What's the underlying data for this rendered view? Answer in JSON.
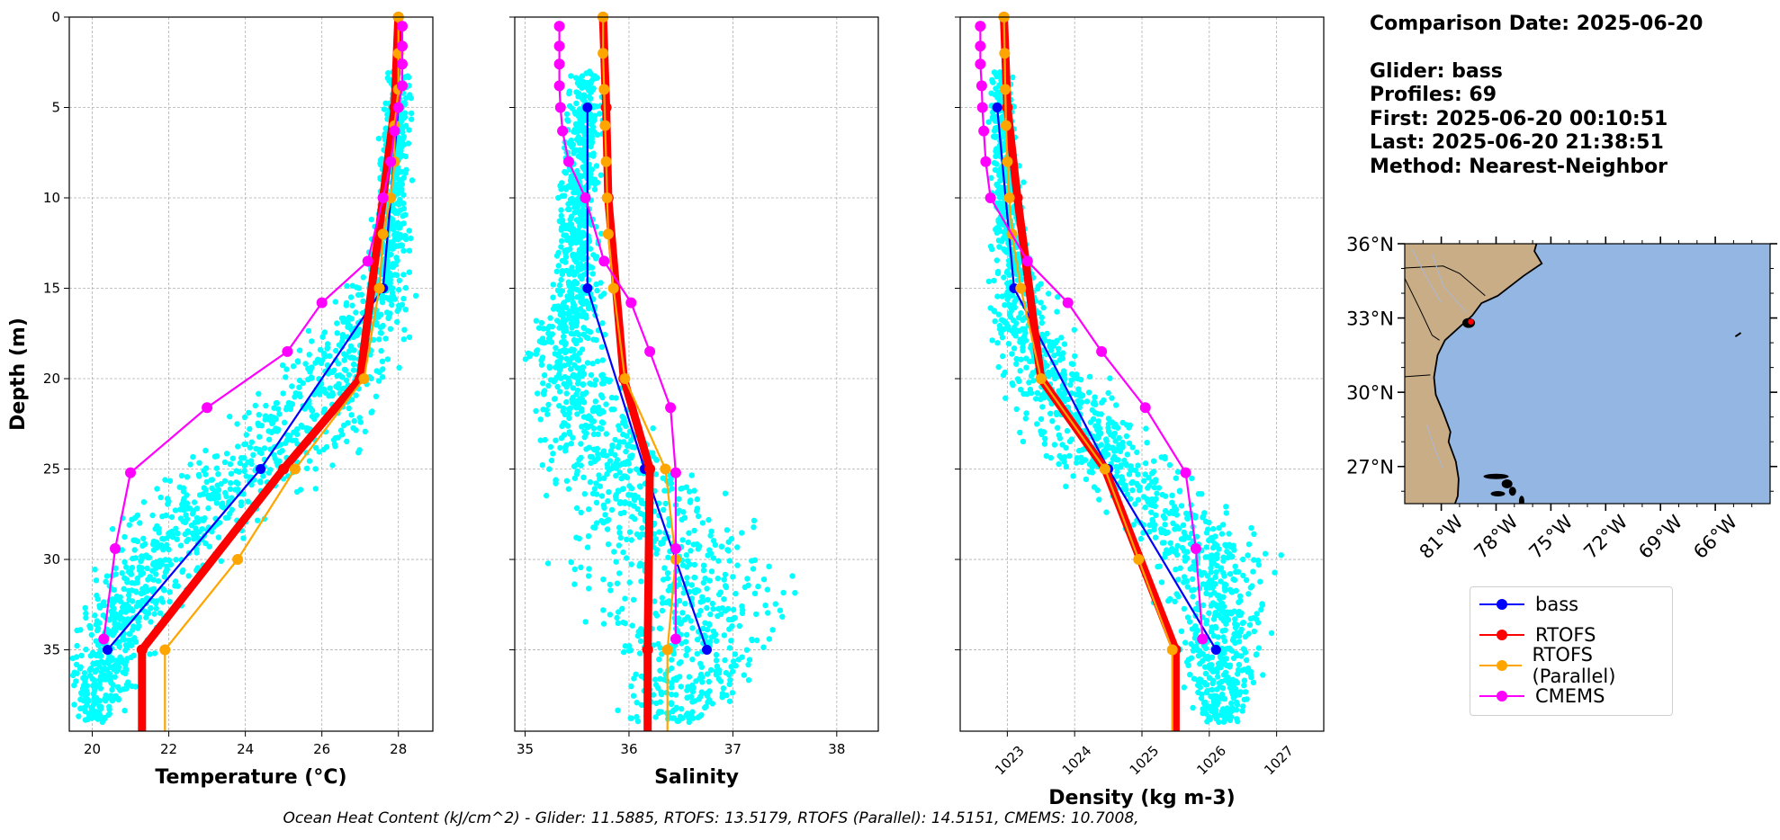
{
  "info": {
    "comparison": "Comparison Date: 2025-06-20",
    "glider": "Glider: bass",
    "profiles": "Profiles: 69",
    "first": "First: 2025-06-20 00:10:51",
    "last": "Last: 2025-06-20 21:38:51",
    "method": "Method: Nearest-Neighbor"
  },
  "footer": "Ocean Heat Content (kJ/cm^2) - Glider: 11.5885,  RTOFS: 13.5179,  RTOFS (Parallel): 14.5151,  CMEMS: 10.7008,",
  "legend": [
    {
      "label": "bass",
      "color": "#0000ff"
    },
    {
      "label": "RTOFS",
      "color": "#ff0000"
    },
    {
      "label": "RTOFS (Parallel)",
      "color": "#ffa500"
    },
    {
      "label": "CMEMS",
      "color": "#ff00ff"
    }
  ],
  "colors": {
    "scatter": "#00ffff",
    "land": "#c9ad86",
    "ocean": "#94b6e2"
  },
  "chart_data": [
    {
      "type": "line",
      "xlabel": "Temperature (°C)",
      "ylabel": "Depth (m)",
      "xlim": [
        19.4,
        28.9
      ],
      "ylim": [
        39.5,
        0
      ],
      "xticks": [
        20,
        22,
        24,
        26,
        28
      ],
      "yticks": [
        0,
        5,
        10,
        15,
        20,
        25,
        30,
        35
      ],
      "grid": true,
      "scatter": {
        "name": "glider profiles",
        "center": [
          [
            3,
            28.0
          ],
          [
            8,
            27.9
          ],
          [
            12,
            27.8
          ],
          [
            15,
            27.5
          ],
          [
            18,
            26.8
          ],
          [
            21,
            26.0
          ],
          [
            24,
            24.8
          ],
          [
            27,
            23.0
          ],
          [
            30,
            21.7
          ],
          [
            33,
            20.8
          ],
          [
            36,
            20.3
          ],
          [
            39,
            20.1
          ]
        ],
        "spread": [
          [
            3,
            0.2
          ],
          [
            12,
            0.3
          ],
          [
            18,
            0.8
          ],
          [
            24,
            1.3
          ],
          [
            30,
            1.0
          ],
          [
            39,
            0.4
          ]
        ]
      },
      "series": [
        {
          "name": "bass",
          "x": [
            28.0,
            27.6,
            24.4,
            20.4
          ],
          "y": [
            5,
            15,
            25,
            35
          ]
        },
        {
          "name": "RTOFS",
          "x": [
            28.0,
            27.9,
            27.6,
            27.0,
            25.0,
            21.3,
            21.3
          ],
          "y": [
            0,
            5,
            10,
            20,
            25,
            35,
            39.5
          ]
        },
        {
          "name": "RTOFS (Parallel)",
          "x": [
            28.0,
            28.0,
            28.0,
            27.9,
            27.9,
            27.8,
            27.6,
            27.5,
            27.1,
            25.3,
            23.8,
            21.9,
            21.9
          ],
          "y": [
            0,
            2,
            4,
            6,
            8,
            10,
            12,
            15,
            20,
            25,
            30,
            35,
            39.5
          ]
        },
        {
          "name": "CMEMS",
          "x": [
            28.1,
            28.1,
            28.1,
            28.1,
            28.0,
            27.9,
            27.8,
            27.6,
            27.2,
            26.0,
            25.1,
            23.0,
            21.0,
            20.6,
            20.3
          ],
          "y": [
            0.5,
            1.6,
            2.6,
            3.8,
            5.0,
            6.3,
            8.0,
            10.0,
            13.5,
            15.8,
            18.5,
            21.6,
            25.2,
            29.4,
            34.4
          ]
        }
      ]
    },
    {
      "type": "line",
      "xlabel": "Salinity",
      "xlim": [
        34.9,
        38.4
      ],
      "ylim": [
        39.5,
        0
      ],
      "xticks": [
        35,
        36,
        37,
        38
      ],
      "yticks": [
        0,
        5,
        10,
        15,
        20,
        25,
        30,
        35
      ],
      "grid": true,
      "scatter": {
        "name": "glider profiles",
        "center": [
          [
            3,
            35.6
          ],
          [
            10,
            35.5
          ],
          [
            15,
            35.5
          ],
          [
            18,
            35.4
          ],
          [
            21,
            35.5
          ],
          [
            24,
            35.8
          ],
          [
            27,
            36.1
          ],
          [
            30,
            36.5
          ],
          [
            33,
            36.6
          ],
          [
            36,
            36.6
          ],
          [
            39,
            36.5
          ]
        ],
        "spread": [
          [
            3,
            0.1
          ],
          [
            15,
            0.15
          ],
          [
            21,
            0.3
          ],
          [
            27,
            0.5
          ],
          [
            30,
            0.8
          ],
          [
            33,
            0.6
          ],
          [
            39,
            0.3
          ]
        ]
      },
      "series": [
        {
          "name": "bass",
          "x": [
            35.6,
            35.6,
            36.15,
            36.75
          ],
          "y": [
            5,
            15,
            25,
            35
          ]
        },
        {
          "name": "RTOFS",
          "x": [
            35.75,
            35.78,
            35.8,
            35.95,
            36.2,
            36.18,
            36.18
          ],
          "y": [
            0,
            5,
            10,
            20,
            25,
            35,
            39.5
          ]
        },
        {
          "name": "RTOFS (Parallel)",
          "x": [
            35.75,
            35.75,
            35.76,
            35.77,
            35.78,
            35.79,
            35.8,
            35.85,
            35.96,
            36.35,
            36.45,
            36.37,
            36.37
          ],
          "y": [
            0,
            2,
            4,
            6,
            8,
            10,
            12,
            15,
            20,
            25,
            30,
            35,
            39.5
          ]
        },
        {
          "name": "CMEMS",
          "x": [
            35.33,
            35.33,
            35.33,
            35.33,
            35.34,
            35.36,
            35.42,
            35.58,
            35.76,
            36.02,
            36.2,
            36.4,
            36.45,
            36.45,
            36.45
          ],
          "y": [
            0.5,
            1.6,
            2.6,
            3.8,
            5.0,
            6.3,
            8.0,
            10.0,
            13.5,
            15.8,
            18.5,
            21.6,
            25.2,
            29.4,
            34.4
          ]
        }
      ]
    },
    {
      "type": "line",
      "xlabel": "Density (kg m-3)",
      "xlim": [
        1022.3,
        1027.7
      ],
      "ylim": [
        39.5,
        0
      ],
      "xticks": [
        1023,
        1024,
        1025,
        1026,
        1027
      ],
      "yticks": [
        0,
        5,
        10,
        15,
        20,
        25,
        30,
        35
      ],
      "grid": true,
      "scatter": {
        "name": "glider profiles",
        "center": [
          [
            3,
            1022.9
          ],
          [
            8,
            1022.95
          ],
          [
            12,
            1023.05
          ],
          [
            15,
            1023.15
          ],
          [
            18,
            1023.4
          ],
          [
            21,
            1023.8
          ],
          [
            24,
            1024.4
          ],
          [
            27,
            1025.3
          ],
          [
            30,
            1026.0
          ],
          [
            33,
            1026.2
          ],
          [
            36,
            1026.2
          ],
          [
            39,
            1026.15
          ]
        ],
        "spread": [
          [
            3,
            0.1
          ],
          [
            12,
            0.15
          ],
          [
            18,
            0.4
          ],
          [
            24,
            0.6
          ],
          [
            30,
            0.6
          ],
          [
            36,
            0.4
          ],
          [
            39,
            0.2
          ]
        ]
      },
      "series": [
        {
          "name": "bass",
          "x": [
            1022.85,
            1023.1,
            1024.5,
            1026.1
          ],
          "y": [
            5,
            15,
            25,
            35
          ]
        },
        {
          "name": "RTOFS",
          "x": [
            1022.95,
            1023.0,
            1023.15,
            1023.5,
            1024.45,
            1025.5,
            1025.5
          ],
          "y": [
            0,
            5,
            10,
            20,
            25,
            35,
            39.5
          ]
        },
        {
          "name": "RTOFS (Parallel)",
          "x": [
            1022.95,
            1022.96,
            1022.97,
            1022.98,
            1023.0,
            1023.03,
            1023.07,
            1023.2,
            1023.5,
            1024.45,
            1024.95,
            1025.45,
            1025.45
          ],
          "y": [
            0,
            2,
            4,
            6,
            8,
            10,
            12,
            15,
            20,
            25,
            30,
            35,
            39.5
          ]
        },
        {
          "name": "CMEMS",
          "x": [
            1022.6,
            1022.6,
            1022.6,
            1022.62,
            1022.63,
            1022.65,
            1022.68,
            1022.75,
            1023.3,
            1023.9,
            1024.4,
            1025.05,
            1025.65,
            1025.8,
            1025.9
          ],
          "y": [
            0.5,
            1.6,
            2.6,
            3.8,
            5.0,
            6.3,
            8.0,
            10.0,
            13.5,
            15.8,
            18.5,
            21.6,
            25.2,
            29.4,
            34.4
          ]
        }
      ]
    }
  ],
  "map": {
    "xlim": [
      -83,
      -63
    ],
    "ylim": [
      25.5,
      36
    ],
    "lat_ticks": [
      "36°N",
      "33°N",
      "30°N",
      "27°N"
    ],
    "lat_values": [
      36,
      33,
      30,
      27
    ],
    "lon_ticks": [
      "81°W",
      "78°W",
      "75°W",
      "72°W",
      "69°W",
      "66°W"
    ],
    "lon_values": [
      -81,
      -78,
      -75,
      -72,
      -69,
      -66
    ],
    "glider_position": [
      -79.5,
      32.8
    ]
  }
}
